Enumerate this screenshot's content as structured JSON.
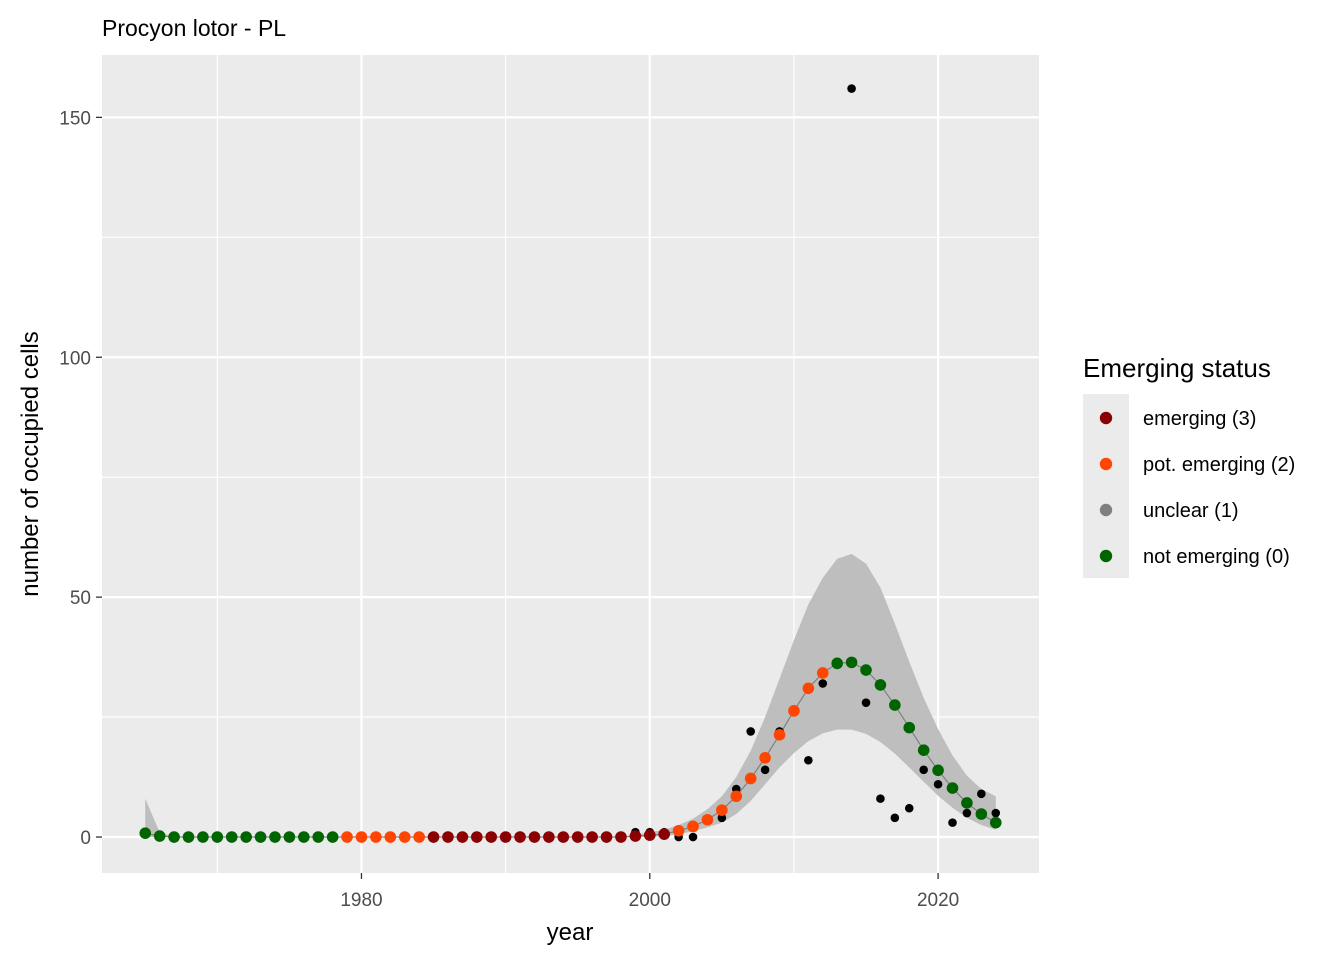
{
  "chart_data": {
    "type": "scatter",
    "title": "Procyon lotor - PL",
    "xlabel": "year",
    "ylabel": "number of occupied cells",
    "xlim": [
      1962,
      2027
    ],
    "ylim": [
      -7.5,
      163
    ],
    "x_ticks": [
      1980,
      2000,
      2020
    ],
    "x_minor_ticks": [
      1970,
      1990,
      2010
    ],
    "y_ticks": [
      0,
      50,
      100,
      150
    ],
    "y_minor_ticks": [
      25,
      75,
      125
    ],
    "grid": true,
    "legend_position": "right",
    "colors": {
      "panel": "#ebebeb",
      "grid": "#ffffff",
      "ribbon": "#bebebe",
      "fit_line": "#7f7f7f",
      "observed": "#000000"
    },
    "legend": {
      "title": "Emerging status",
      "items": [
        {
          "label": "emerging (3)",
          "color": "#8b0000"
        },
        {
          "label": "pot. emerging (2)",
          "color": "#ff4500"
        },
        {
          "label": "unclear (1)",
          "color": "#7f7f7f"
        },
        {
          "label": "not emerging (0)",
          "color": "#006400"
        }
      ]
    },
    "observed": {
      "x": [
        1999,
        2000,
        2001,
        2002,
        2003,
        2005,
        2006,
        2007,
        2008,
        2009,
        2011,
        2012,
        2014,
        2015,
        2016,
        2017,
        2018,
        2019,
        2020,
        2021,
        2022,
        2023,
        2024
      ],
      "y": [
        1,
        1,
        1,
        0,
        0,
        4,
        10,
        22,
        14,
        22,
        16,
        32,
        156,
        28,
        8,
        4,
        6,
        14,
        11,
        3,
        5,
        9,
        5
      ]
    },
    "fitted": {
      "x": [
        1965,
        1966,
        1967,
        1968,
        1969,
        1970,
        1971,
        1972,
        1973,
        1974,
        1975,
        1976,
        1977,
        1978,
        1979,
        1980,
        1981,
        1982,
        1983,
        1984,
        1985,
        1986,
        1987,
        1988,
        1989,
        1990,
        1991,
        1992,
        1993,
        1994,
        1995,
        1996,
        1997,
        1998,
        1999,
        2000,
        2001,
        2002,
        2003,
        2004,
        2005,
        2006,
        2007,
        2008,
        2009,
        2010,
        2011,
        2012,
        2013,
        2014,
        2015,
        2016,
        2017,
        2018,
        2019,
        2020,
        2021,
        2022,
        2023,
        2024
      ],
      "y": [
        0.8,
        0.2,
        0,
        0,
        0,
        0,
        0,
        0,
        0,
        0,
        0,
        0,
        0,
        0,
        0,
        0,
        0,
        0,
        0,
        0,
        0,
        0,
        0,
        0,
        0,
        0,
        0,
        0,
        0,
        0,
        0,
        0,
        0,
        0,
        0.2,
        0.4,
        0.6,
        1.3,
        2.2,
        3.6,
        5.6,
        8.5,
        12.2,
        16.5,
        21.3,
        26.3,
        31,
        34.2,
        36.2,
        36.4,
        34.8,
        31.7,
        27.5,
        22.8,
        18.1,
        13.9,
        10.2,
        7.1,
        4.8,
        3
      ],
      "status": [
        0,
        0,
        0,
        0,
        0,
        0,
        0,
        0,
        0,
        0,
        0,
        0,
        0,
        0,
        2,
        2,
        2,
        2,
        2,
        2,
        3,
        3,
        3,
        3,
        3,
        3,
        3,
        3,
        3,
        3,
        3,
        3,
        3,
        3,
        3,
        3,
        3,
        2,
        2,
        2,
        2,
        2,
        2,
        2,
        2,
        2,
        2,
        2,
        0,
        0,
        0,
        0,
        0,
        0,
        0,
        0,
        0,
        0,
        0,
        0
      ],
      "lower": [
        0,
        0,
        0,
        0,
        0,
        0,
        0,
        0,
        0,
        0,
        0,
        0,
        0,
        0,
        0,
        0,
        0,
        0,
        0,
        0,
        0,
        0,
        0,
        0,
        0,
        0,
        0,
        0,
        0,
        0,
        0,
        0,
        0,
        0,
        0,
        0,
        0.2,
        0.6,
        1.2,
        2,
        3,
        4.8,
        7.5,
        11,
        14.5,
        17.5,
        20,
        21.6,
        22.4,
        22.4,
        21.5,
        19.8,
        17.4,
        14.5,
        11.5,
        8.6,
        6.1,
        4,
        2.5,
        1.5
      ],
      "upper": [
        8,
        1,
        0,
        0,
        0,
        0,
        0,
        0,
        0,
        0,
        0,
        0,
        0,
        0,
        0,
        0,
        0,
        0,
        0,
        0,
        0,
        0,
        0,
        0,
        0,
        0,
        0,
        0,
        0,
        0,
        0,
        0,
        0,
        0,
        0.5,
        1,
        1.5,
        2.5,
        3.8,
        5.8,
        8.5,
        12.5,
        18,
        25,
        33,
        41,
        48.5,
        54,
        58,
        59,
        57,
        52,
        44.5,
        36.5,
        29,
        22.5,
        17,
        12.8,
        10,
        8.5
      ]
    }
  }
}
